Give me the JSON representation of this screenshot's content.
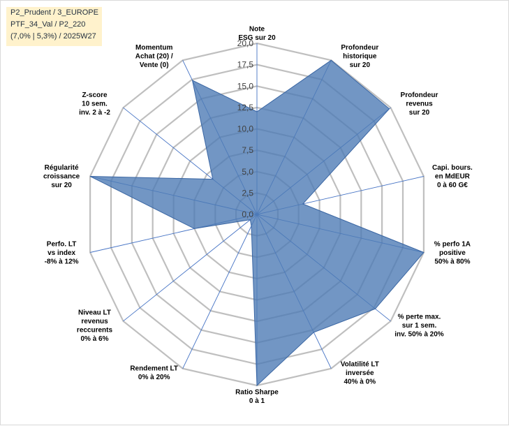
{
  "info_box": {
    "lines": [
      "P2_Prudent / 3_EUROPE",
      "PTF_34_Val / P2_220",
      "(7,0% | 5,3%) / 2025W27"
    ]
  },
  "colors": {
    "fill": "#4f7cb5",
    "stroke": "#3a66a3",
    "grid": "#bfbfbf",
    "spoke": "#4472c4",
    "info_bg": "#fff2cc"
  },
  "chart_data": {
    "type": "radar",
    "title": "",
    "ylim": [
      0,
      20
    ],
    "ticks": [
      "0,0",
      "2,5",
      "5,0",
      "7,5",
      "10,0",
      "12,5",
      "15,0",
      "17,5",
      "20,0"
    ],
    "categories": [
      [
        "Note",
        "ESG sur 20"
      ],
      [
        "Profondeur",
        "historique",
        "sur 20"
      ],
      [
        "Profondeur",
        "revenus",
        "sur 20"
      ],
      [
        "Capi. bours.",
        "en MdEUR",
        "0 à 60 G€"
      ],
      [
        "% perfo 1A",
        "positive",
        "50% à 80%"
      ],
      [
        "% perte max.",
        "sur 1 sem.",
        "inv. 50% à 20%"
      ],
      [
        "Volatilité LT",
        "inversée",
        "40% à 0%"
      ],
      [
        "Ratio Sharpe",
        "0 à 1"
      ],
      [
        "Rendement LT",
        "0% à 20%"
      ],
      [
        "Niveau LT",
        "revenus",
        "reccurents",
        "0% à 6%"
      ],
      [
        "Perfo. LT",
        "vs index",
        "-8% à 12%"
      ],
      [
        "Régularité",
        "croissance",
        "sur 20"
      ],
      [
        "Z-score",
        "10 sem.",
        "inv. 2 à -2"
      ],
      [
        "Momentum",
        "Achat (20) /",
        "Vente (0)"
      ]
    ],
    "series": [
      {
        "values": [
          12,
          20,
          19.8,
          5.5,
          20,
          17.7,
          15.3,
          20,
          1.5,
          1,
          7.5,
          20,
          6.6,
          17.4
        ]
      }
    ]
  }
}
